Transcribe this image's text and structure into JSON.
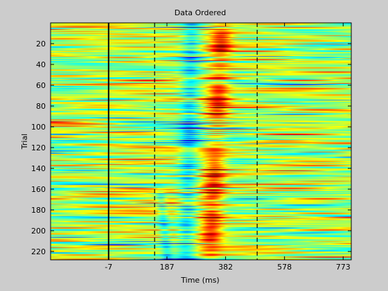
{
  "chart_data": {
    "type": "heatmap",
    "title": "Data Ordered",
    "xlabel": "Time (ms)",
    "ylabel": "Trial",
    "xlim": [
      -200,
      800
    ],
    "ylim": [
      0,
      228
    ],
    "xticks": [
      -7,
      187,
      382,
      578,
      773
    ],
    "xtick_labels": [
      "-7",
      "187",
      "382",
      "578",
      "773"
    ],
    "yticks": [
      20,
      40,
      60,
      80,
      100,
      120,
      140,
      160,
      180,
      200,
      220
    ],
    "ytick_labels": [
      "20",
      "40",
      "60",
      "80",
      "100",
      "120",
      "140",
      "160",
      "180",
      "200",
      "220"
    ],
    "y_reversed": true,
    "grid": false,
    "colormap": "jet",
    "rows": 228,
    "vertical_lines": [
      {
        "x": -7,
        "style": "solid"
      },
      {
        "x": 146,
        "style": "dashed"
      },
      {
        "x": 487,
        "style": "dashed"
      }
    ],
    "features": [
      {
        "kind": "positive-band",
        "x_start": 370,
        "x_end": 330,
        "trial_start": 1,
        "trial_end": 228,
        "peak_trials": [
          [
            10,
            30
          ],
          [
            60,
            90
          ],
          [
            130,
            170
          ],
          [
            180,
            210
          ]
        ]
      },
      {
        "kind": "negative-band",
        "x_start": 270,
        "x_end": 250,
        "trial_start": 1,
        "trial_end": 228
      },
      {
        "kind": "early-negative",
        "x_start": 160,
        "x_end": 190,
        "trial_start": 150,
        "trial_end": 228
      }
    ]
  },
  "colors": {
    "figure_background": "#cccccc",
    "axes_background": "#ffffff",
    "axis_line": "#000000",
    "colormap_stops": [
      "#0000ff",
      "#00ffff",
      "#ffff00",
      "#ff0000",
      "#800000"
    ]
  }
}
